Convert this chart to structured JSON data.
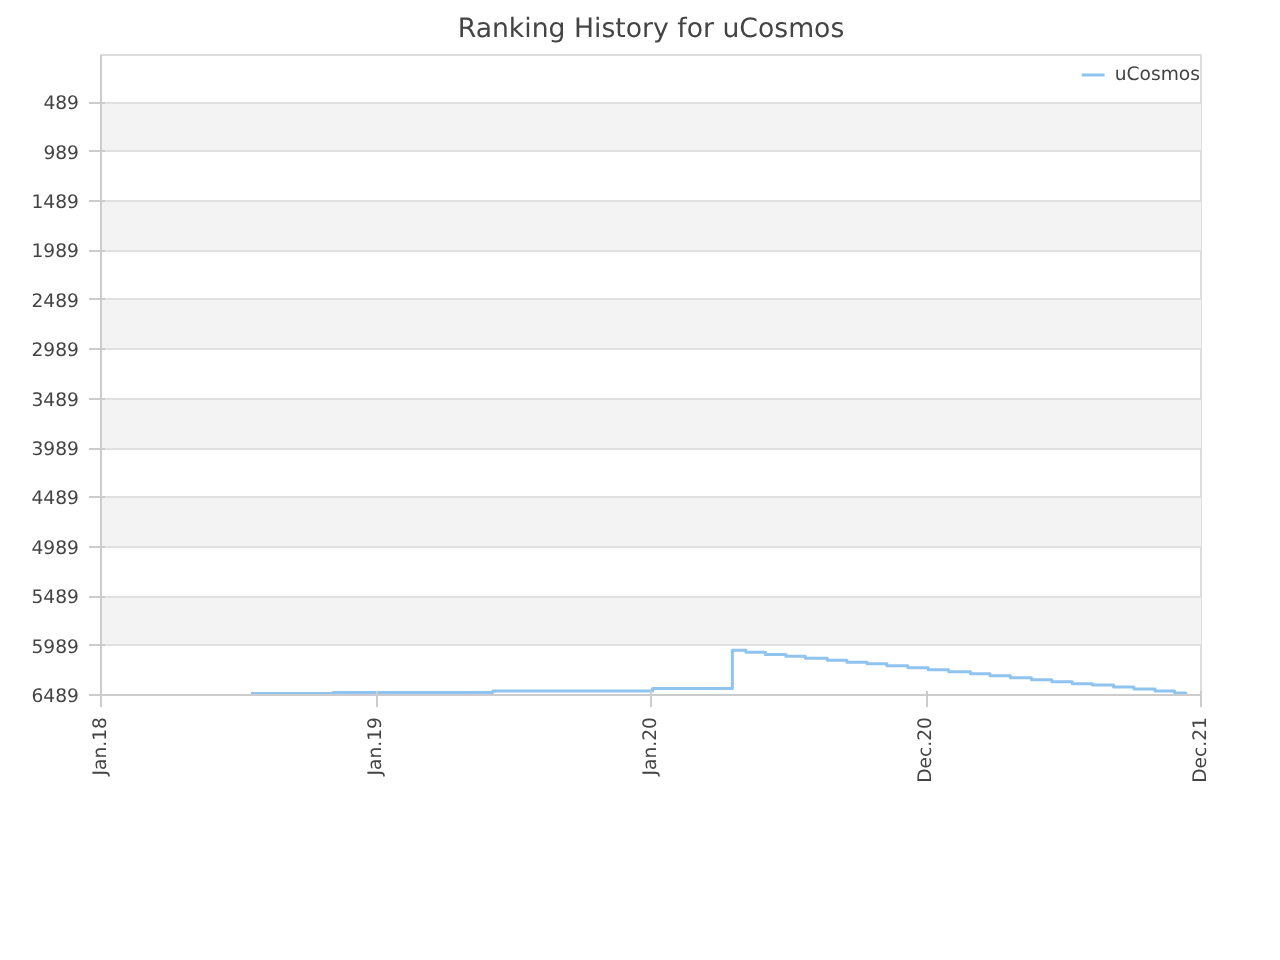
{
  "chart_data": {
    "type": "step",
    "title": "Ranking History for uCosmos",
    "x": [
      "2018-07-19",
      "2018-11-05",
      "2019-06-05",
      "2020-01-03",
      "2020-04-18",
      "2020-05-06",
      "2020-06-01",
      "2020-06-28",
      "2020-07-24",
      "2020-08-22",
      "2020-09-17",
      "2020-10-14",
      "2020-11-09",
      "2020-12-07",
      "2021-01-03",
      "2021-01-30",
      "2021-02-28",
      "2021-03-26",
      "2021-04-22",
      "2021-05-20",
      "2021-06-16",
      "2021-07-13",
      "2021-08-09",
      "2021-09-06",
      "2021-10-03",
      "2021-10-31",
      "2021-11-26",
      "2021-12-11"
    ],
    "series": [
      {
        "name": "uCosmos",
        "color": "#90c4f0",
        "values": [
          6475,
          6463,
          6449,
          6422,
          6037,
          6057,
          6078,
          6098,
          6118,
          6138,
          6158,
          6172,
          6192,
          6212,
          6233,
          6253,
          6273,
          6293,
          6314,
          6334,
          6354,
          6374,
          6388,
          6408,
          6428,
          6449,
          6469,
          6476
        ]
      }
    ],
    "xlim": [
      "2018-01-01",
      "2021-12-31"
    ],
    "xticks": [
      {
        "value": "2018-01-01",
        "label": "Jan.18"
      },
      {
        "value": "2019-01-01",
        "label": "Jan.19"
      },
      {
        "value": "2020-01-01",
        "label": "Jan.20"
      },
      {
        "value": "2020-12-31",
        "label": "Dec.20"
      },
      {
        "value": "2021-12-31",
        "label": "Dec.21"
      }
    ],
    "ylim": [
      6489,
      11
    ],
    "yticks": [
      489,
      989,
      1489,
      1989,
      2489,
      2989,
      3489,
      3989,
      4489,
      4989,
      5489,
      5989,
      6489
    ],
    "grid": "y",
    "legend": "top right"
  }
}
